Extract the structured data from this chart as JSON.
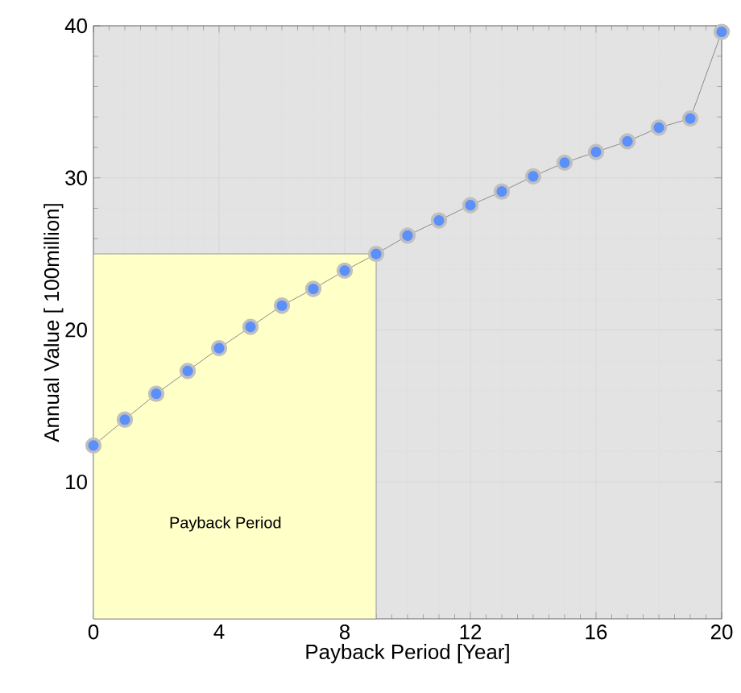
{
  "chart_data": {
    "type": "line",
    "xlabel": "Payback Period [Year]",
    "ylabel": "Annual Value [ 100million]",
    "xlim": [
      0,
      20
    ],
    "ylim": [
      1,
      40
    ],
    "xticks": [
      0,
      4,
      8,
      12,
      16,
      20
    ],
    "yticks": [
      10,
      20,
      30,
      40
    ],
    "grid": true,
    "marker": "circle",
    "series": [
      {
        "type": "area",
        "marker": "none",
        "color": "#ffffc8",
        "x": [
          0,
          9
        ],
        "values": [
          25,
          25
        ]
      },
      {
        "color": "#5b8ff9",
        "x": [
          0,
          1,
          2,
          3,
          4,
          5,
          6,
          7,
          8,
          9,
          10,
          11,
          12,
          13,
          14,
          15,
          16,
          17,
          18,
          19,
          20
        ],
        "values": [
          12.4,
          14.1,
          15.8,
          17.3,
          18.8,
          20.2,
          21.6,
          22.7,
          23.9,
          25.0,
          26.2,
          27.2,
          28.2,
          29.1,
          30.1,
          31.0,
          31.7,
          32.4,
          33.3,
          33.9,
          39.6
        ]
      }
    ],
    "annotations": [
      "Payback Period"
    ]
  }
}
